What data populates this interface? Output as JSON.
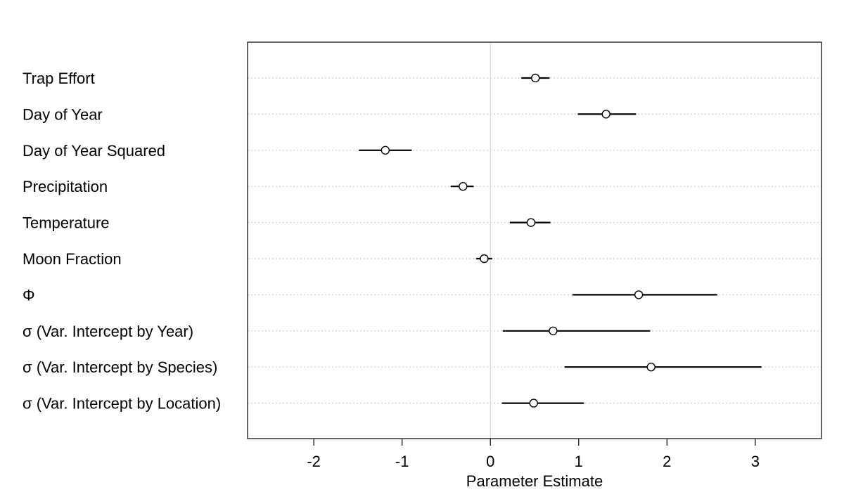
{
  "chart_data": {
    "type": "scatter",
    "subtype": "coefficient-plot-with-intervals",
    "xlabel": "Parameter Estimate",
    "xlim": [
      -2.75,
      3.75
    ],
    "xticks": [
      -2,
      -1,
      0,
      1,
      2,
      3
    ],
    "xtick_labels": [
      "-2",
      "-1",
      "0",
      "1",
      "2",
      "3"
    ],
    "reference_line_x": 0,
    "reference_line_color": "#dddddd",
    "row_gridlines": "dotted",
    "grid_color": "#cccccc",
    "marker": "open-circle",
    "parameters": [
      {
        "label": "Trap Effort",
        "estimate": 0.51,
        "lower": 0.35,
        "upper": 0.67
      },
      {
        "label": "Day of Year",
        "estimate": 1.31,
        "lower": 0.99,
        "upper": 1.65
      },
      {
        "label": "Day of Year Squared",
        "estimate": -1.19,
        "lower": -1.49,
        "upper": -0.89
      },
      {
        "label": "Precipitation",
        "estimate": -0.31,
        "lower": -0.45,
        "upper": -0.19
      },
      {
        "label": "Temperature",
        "estimate": 0.46,
        "lower": 0.22,
        "upper": 0.68
      },
      {
        "label": "Moon Fraction",
        "estimate": -0.07,
        "lower": -0.16,
        "upper": 0.02
      },
      {
        "label": "Φ",
        "estimate": 1.68,
        "lower": 0.93,
        "upper": 2.57
      },
      {
        "label": "σ (Var. Intercept by Year)",
        "estimate": 0.71,
        "lower": 0.14,
        "upper": 1.81
      },
      {
        "label": "σ (Var. Intercept by Species)",
        "estimate": 1.82,
        "lower": 0.84,
        "upper": 3.07
      },
      {
        "label": "σ (Var. Intercept by Location)",
        "estimate": 0.49,
        "lower": 0.13,
        "upper": 1.06
      }
    ]
  }
}
